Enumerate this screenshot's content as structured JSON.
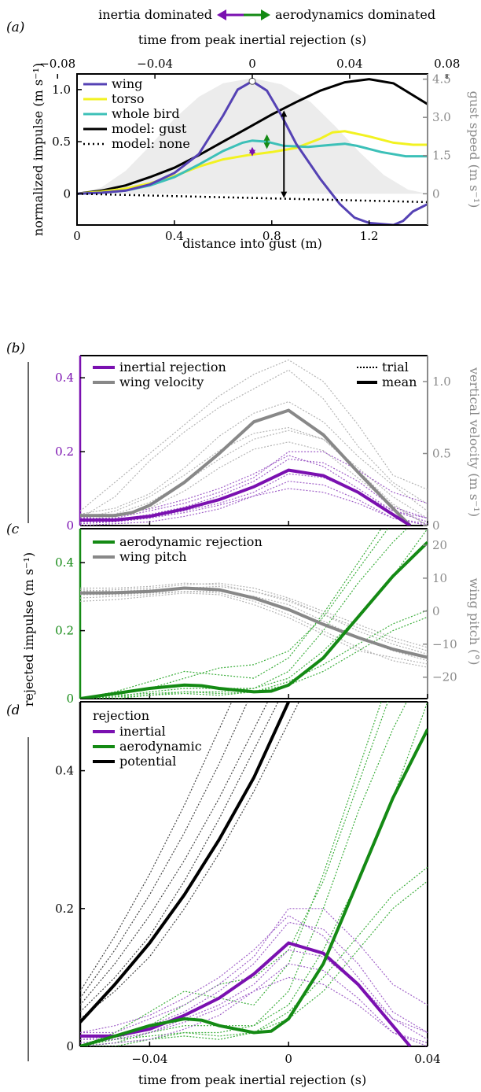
{
  "colors": {
    "wing": "#5542b4",
    "torso": "#f2f221",
    "whole_bird": "#3cc0b8",
    "black": "#000000",
    "gust_fill": "#ececec",
    "inertial": "#7a10b0",
    "aero": "#148a14",
    "grey": "#888888",
    "inertial_trial": "#a060c8",
    "aero_trial": "#3cae3c",
    "grey_trial": "#b4b4b4"
  },
  "header": {
    "left": "inertia dominated",
    "right": "aerodynamics dominated"
  },
  "labels": {
    "shared_ylabel": "rejected impulse (m s⁻¹)",
    "shared_xlabel": "time from peak inertial rejection (s)"
  },
  "chart_data": [
    {
      "id": "a",
      "panel_label": "(a)",
      "type": "line",
      "xlabel": "distance into gust (m)",
      "xlabel_top": "time from peak inertial rejection (s)",
      "ylabel": "normalized impulse (m s⁻¹)",
      "ylabel_right": "gust speed (m s⁻¹)",
      "xlim": [
        0,
        1.44
      ],
      "ylim": [
        -0.3,
        1.15
      ],
      "x_ticks": [
        "0",
        "0.4",
        "0.8",
        "1.2"
      ],
      "x_tick_values": [
        0,
        0.4,
        0.8,
        1.2
      ],
      "x_top_ticks": [
        "−0.08",
        "−0.04",
        "0",
        "0.04",
        "0.08"
      ],
      "x_top_tick_values": [
        -0.08,
        -0.04,
        0,
        0.04,
        0.08
      ],
      "y_ticks": [
        "0",
        "0.5",
        "1.0"
      ],
      "y_tick_values": [
        0,
        0.5,
        1.0
      ],
      "y_right_ticks": [
        "0",
        "1.5",
        "3.0",
        "4.5"
      ],
      "legend": [
        "wing",
        "torso",
        "whole bird",
        "model: gust",
        "model: none"
      ],
      "gust_profile": {
        "x": [
          0,
          0.1,
          0.2,
          0.3,
          0.4,
          0.5,
          0.6,
          0.72,
          0.84,
          0.96,
          1.06,
          1.16,
          1.26,
          1.36,
          1.44
        ],
        "y": [
          0,
          0.06,
          0.22,
          0.46,
          0.72,
          0.93,
          1.06,
          1.11,
          1.05,
          0.88,
          0.65,
          0.4,
          0.18,
          0.04,
          0
        ]
      },
      "series": [
        {
          "name": "wing",
          "color": "#5542b4",
          "x": [
            0,
            0.1,
            0.2,
            0.3,
            0.4,
            0.5,
            0.6,
            0.66,
            0.72,
            0.78,
            0.84,
            0.9,
            1.0,
            1.08,
            1.14,
            1.2,
            1.3,
            1.34,
            1.38,
            1.44
          ],
          "y": [
            0,
            0.01,
            0.03,
            0.09,
            0.2,
            0.38,
            0.75,
            1.0,
            1.08,
            0.99,
            0.75,
            0.48,
            0.14,
            -0.1,
            -0.23,
            -0.28,
            -0.3,
            -0.26,
            -0.17,
            -0.1
          ]
        },
        {
          "name": "torso",
          "color": "#f2f221",
          "x": [
            0,
            0.1,
            0.2,
            0.3,
            0.4,
            0.5,
            0.6,
            0.7,
            0.8,
            0.9,
            1.0,
            1.05,
            1.1,
            1.2,
            1.3,
            1.38,
            1.44
          ],
          "y": [
            0,
            0.02,
            0.05,
            0.1,
            0.17,
            0.26,
            0.33,
            0.37,
            0.4,
            0.44,
            0.53,
            0.59,
            0.6,
            0.55,
            0.49,
            0.47,
            0.47
          ]
        },
        {
          "name": "whole bird",
          "color": "#3cc0b8",
          "x": [
            0,
            0.1,
            0.2,
            0.3,
            0.4,
            0.5,
            0.6,
            0.68,
            0.72,
            0.78,
            0.85,
            0.95,
            1.05,
            1.1,
            1.15,
            1.25,
            1.35,
            1.44
          ],
          "y": [
            0,
            0.01,
            0.03,
            0.08,
            0.16,
            0.28,
            0.41,
            0.49,
            0.51,
            0.5,
            0.46,
            0.45,
            0.47,
            0.48,
            0.46,
            0.4,
            0.36,
            0.36
          ]
        },
        {
          "name": "model: gust",
          "color": "#000000",
          "x": [
            0,
            0.1,
            0.2,
            0.3,
            0.4,
            0.5,
            0.6,
            0.7,
            0.8,
            0.9,
            1.0,
            1.1,
            1.2,
            1.3,
            1.44
          ],
          "y": [
            0,
            0.03,
            0.08,
            0.16,
            0.25,
            0.37,
            0.5,
            0.63,
            0.76,
            0.88,
            0.99,
            1.07,
            1.1,
            1.06,
            0.86
          ]
        },
        {
          "name": "model: none",
          "color": "#000000",
          "dotted": true,
          "x": [
            0,
            0.72,
            1.44
          ],
          "y": [
            0,
            -0.04,
            -0.08
          ]
        }
      ],
      "annotations": [
        {
          "kind": "double-arrow",
          "color": "#148a14",
          "x": 0.78,
          "y_from": 0.43,
          "y_to": 0.57
        },
        {
          "kind": "double-arrow",
          "color": "#7a10b0",
          "x": 0.72,
          "y_from": 0.36,
          "y_to": 0.45
        },
        {
          "kind": "double-arrow",
          "color": "#000000",
          "x": 0.85,
          "y_from": -0.04,
          "y_to": 0.8
        },
        {
          "kind": "marker",
          "color": "#ffffff",
          "x": 0.72,
          "y": 1.08
        }
      ]
    },
    {
      "id": "b",
      "panel_label": "(b)",
      "type": "line",
      "xlim": [
        -0.06,
        0.04
      ],
      "ylim": [
        0,
        0.46
      ],
      "y_ticks": [
        "0",
        "0.2",
        "0.4"
      ],
      "y_tick_values": [
        0,
        0.2,
        0.4
      ],
      "ylabel_right": "vertical velocity (m s⁻¹)",
      "y_right_ticks": [
        "0",
        "0.5",
        "1.0"
      ],
      "y_right_tick_values": [
        0,
        0.5,
        1.0
      ],
      "y_right_lim": [
        0,
        1.18
      ],
      "legend": [
        "inertial rejection",
        "wing velocity",
        "trial",
        "mean"
      ],
      "series": [
        {
          "name": "inertial rejection",
          "color": "#7a10b0",
          "axis": "left",
          "x": [
            -0.06,
            -0.05,
            -0.04,
            -0.03,
            -0.02,
            -0.01,
            0,
            0.01,
            0.02,
            0.03,
            0.035
          ],
          "y": [
            0.015,
            0.015,
            0.025,
            0.045,
            0.07,
            0.105,
            0.15,
            0.135,
            0.09,
            0.03,
            0.0
          ]
        },
        {
          "name": "wing velocity",
          "color": "#888888",
          "axis": "right",
          "x": [
            -0.06,
            -0.05,
            -0.045,
            -0.04,
            -0.03,
            -0.02,
            -0.01,
            0,
            0.01,
            0.02,
            0.03,
            0.035
          ],
          "y": [
            0.07,
            0.07,
            0.09,
            0.14,
            0.3,
            0.5,
            0.72,
            0.8,
            0.63,
            0.37,
            0.12,
            0.0
          ]
        }
      ],
      "trials": {
        "inertial": [
          [
            0.02,
            0.02,
            0.04,
            0.06,
            0.09,
            0.13,
            0.2,
            0.2,
            0.15,
            0.09,
            0.06
          ],
          [
            0.01,
            0.015,
            0.03,
            0.05,
            0.08,
            0.12,
            0.18,
            0.17,
            0.12,
            0.05,
            0.02
          ],
          [
            0.02,
            0.03,
            0.045,
            0.07,
            0.1,
            0.14,
            0.19,
            0.16,
            0.1,
            0.04,
            0.02
          ],
          [
            0.01,
            0.01,
            0.02,
            0.04,
            0.06,
            0.09,
            0.14,
            0.13,
            0.09,
            0.04,
            0.01
          ],
          [
            0.0,
            0.005,
            0.01,
            0.025,
            0.045,
            0.08,
            0.12,
            0.11,
            0.07,
            0.02,
            0.0
          ],
          [
            0.005,
            0.01,
            0.02,
            0.035,
            0.055,
            0.08,
            0.1,
            0.09,
            0.06,
            0.02,
            0.005
          ]
        ],
        "velocity": [
          [
            0.1,
            0.3,
            0.5,
            0.7,
            0.9,
            1.05,
            1.15,
            1.0,
            0.7,
            0.35,
            0.25
          ],
          [
            0.05,
            0.2,
            0.45,
            0.65,
            0.82,
            0.95,
            1.08,
            0.88,
            0.55,
            0.3,
            0.15
          ],
          [
            0.08,
            0.12,
            0.22,
            0.4,
            0.62,
            0.78,
            0.86,
            0.72,
            0.48,
            0.28,
            0.1
          ],
          [
            0.05,
            0.1,
            0.2,
            0.35,
            0.52,
            0.64,
            0.68,
            0.6,
            0.4,
            0.2,
            0.05
          ],
          [
            0.02,
            0.08,
            0.16,
            0.3,
            0.46,
            0.6,
            0.66,
            0.6,
            0.38,
            0.15,
            0.0
          ],
          [
            0.03,
            0.06,
            0.12,
            0.24,
            0.4,
            0.53,
            0.58,
            0.52,
            0.33,
            0.14,
            0.0
          ]
        ]
      }
    },
    {
      "id": "c",
      "panel_label": "(c)",
      "type": "line",
      "xlim": [
        -0.06,
        0.04
      ],
      "ylim": [
        0,
        0.5
      ],
      "y_ticks": [
        "0",
        "0.2",
        "0.4"
      ],
      "y_tick_values": [
        0,
        0.2,
        0.4
      ],
      "ylabel_right": "wing pitch (°)",
      "y_right_ticks": [
        "−20",
        "−10",
        "0",
        "10",
        "20"
      ],
      "y_right_tick_values": [
        -20,
        -10,
        0,
        10,
        20
      ],
      "y_right_lim": [
        -26.5,
        25
      ],
      "legend": [
        "aerodynamic rejection",
        "wing pitch"
      ],
      "series": [
        {
          "name": "aerodynamic rejection",
          "color": "#148a14",
          "axis": "left",
          "x": [
            -0.06,
            -0.05,
            -0.04,
            -0.03,
            -0.025,
            -0.02,
            -0.01,
            -0.005,
            0,
            0.01,
            0.02,
            0.03,
            0.04
          ],
          "y": [
            0.0,
            0.015,
            0.03,
            0.04,
            0.038,
            0.03,
            0.02,
            0.022,
            0.04,
            0.12,
            0.24,
            0.36,
            0.46
          ]
        },
        {
          "name": "wing pitch",
          "color": "#888888",
          "axis": "right",
          "x": [
            -0.06,
            -0.05,
            -0.04,
            -0.03,
            -0.02,
            -0.01,
            0,
            0.01,
            0.02,
            0.03,
            0.04
          ],
          "y": [
            5.5,
            5.6,
            6.0,
            7.0,
            6.5,
            4.0,
            0.5,
            -4.0,
            -8.0,
            -11.5,
            -14.0
          ]
        }
      ]
    },
    {
      "id": "d",
      "panel_label": "(d)",
      "type": "line",
      "xlabel": "time from peak inertial rejection (s)",
      "xlim": [
        -0.06,
        0.04
      ],
      "ylim": [
        0,
        0.5
      ],
      "x_ticks": [
        "−0.04",
        "0",
        "0.04"
      ],
      "x_tick_values": [
        -0.04,
        0,
        0.04
      ],
      "y_ticks": [
        "0",
        "0.2",
        "0.4"
      ],
      "y_tick_values": [
        0,
        0.2,
        0.4
      ],
      "legend_title": "rejection",
      "legend": [
        "inertial",
        "aerodynamic",
        "potential"
      ],
      "series": [
        {
          "name": "inertial",
          "color": "#7a10b0",
          "x": [
            -0.06,
            -0.05,
            -0.04,
            -0.03,
            -0.02,
            -0.01,
            0,
            0.01,
            0.02,
            0.03,
            0.035
          ],
          "y": [
            0.015,
            0.015,
            0.025,
            0.045,
            0.07,
            0.105,
            0.15,
            0.135,
            0.09,
            0.03,
            0.0
          ]
        },
        {
          "name": "aerodynamic",
          "color": "#148a14",
          "x": [
            -0.06,
            -0.05,
            -0.04,
            -0.03,
            -0.025,
            -0.02,
            -0.01,
            -0.005,
            0,
            0.01,
            0.02,
            0.03,
            0.04
          ],
          "y": [
            0.0,
            0.015,
            0.03,
            0.04,
            0.038,
            0.03,
            0.02,
            0.022,
            0.04,
            0.12,
            0.24,
            0.36,
            0.46
          ]
        },
        {
          "name": "potential",
          "color": "#000000",
          "x": [
            -0.06,
            -0.05,
            -0.04,
            -0.03,
            -0.02,
            -0.01,
            0
          ],
          "y": [
            0.035,
            0.09,
            0.15,
            0.22,
            0.3,
            0.39,
            0.5
          ]
        }
      ]
    }
  ]
}
